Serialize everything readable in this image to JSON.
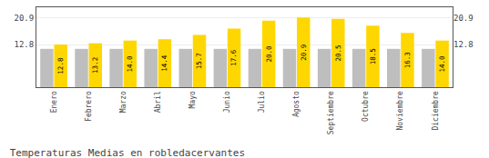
{
  "chart_data": {
    "type": "bar",
    "title": "Temperaturas Medias en robledacervantes",
    "categories": [
      "Enero",
      "Febrero",
      "Marzo",
      "Abril",
      "Mayo",
      "Junio",
      "Julio",
      "Agosto",
      "Septiembre",
      "Octubre",
      "Noviembre",
      "Diciembre"
    ],
    "series": [
      {
        "color": "#BEBEBE",
        "values": [
          11.5,
          11.5,
          11.5,
          11.5,
          11.5,
          11.5,
          11.5,
          11.5,
          11.5,
          11.5,
          11.5,
          11.5
        ]
      },
      {
        "color": "#FFD700",
        "values": [
          12.8,
          13.2,
          14.0,
          14.4,
          15.7,
          17.6,
          20.0,
          20.9,
          20.5,
          18.5,
          16.3,
          14.0
        ],
        "value_labels": [
          "12.8",
          "13.2",
          "14.0",
          "14.4",
          "15.7",
          "17.6",
          "20.0",
          "20.9",
          "20.5",
          "18.5",
          "16.3",
          "14.0"
        ],
        "data_labels": true
      }
    ],
    "ylim": [
      0,
      24.0
    ],
    "yticks": [
      12.8,
      20.9
    ],
    "y2lim": [
      0,
      24.0
    ],
    "y2ticks": [
      12.8,
      20.9
    ],
    "grid": true
  }
}
